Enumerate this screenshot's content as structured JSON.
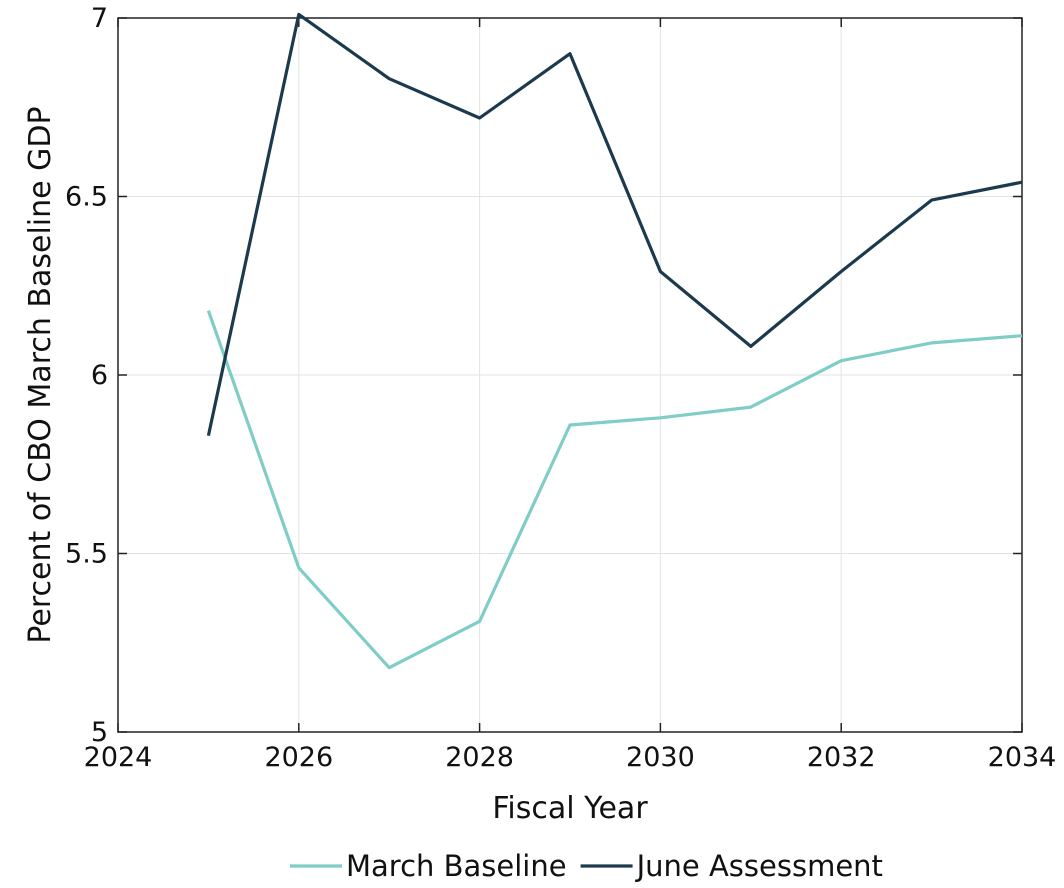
{
  "chart_data": {
    "type": "line",
    "title": "",
    "xlabel": "Fiscal Year",
    "ylabel": "Percent of CBO March Baseline GDP",
    "xlim": [
      2024,
      2034
    ],
    "ylim": [
      5,
      7
    ],
    "xticks": [
      2024,
      2026,
      2028,
      2030,
      2032,
      2034
    ],
    "yticks": [
      5,
      5.5,
      6,
      6.5,
      7
    ],
    "ytick_labels": [
      "5",
      "5.5",
      "6",
      "6.5",
      "7"
    ],
    "grid": true,
    "legend_position": "bottom",
    "x": [
      2025,
      2026,
      2027,
      2028,
      2029,
      2030,
      2031,
      2032,
      2033,
      2034
    ],
    "series": [
      {
        "name": "March Baseline",
        "color": "#7fcdc6",
        "values": [
          6.18,
          5.46,
          5.18,
          5.31,
          5.86,
          5.88,
          5.91,
          6.04,
          6.09,
          6.11
        ]
      },
      {
        "name": "June Assessment",
        "color": "#1c3a4d",
        "values": [
          5.83,
          7.01,
          6.83,
          6.72,
          6.9,
          6.29,
          6.08,
          6.29,
          6.49,
          6.54
        ]
      }
    ]
  }
}
